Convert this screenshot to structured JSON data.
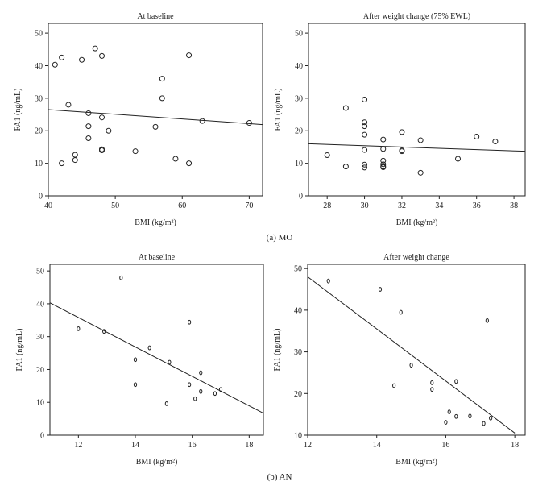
{
  "chart_data": [
    {
      "type": "scatter",
      "title": "At baseline",
      "xlabel": "BMI (kg/m²)",
      "ylabel": "FA1 (ng/mL)",
      "xlim": [
        40,
        72
      ],
      "ylim": [
        0,
        53
      ],
      "xticks": [
        40,
        50,
        60,
        70
      ],
      "yticks": [
        0,
        10,
        20,
        30,
        40,
        50
      ],
      "points": [
        {
          "x": 41,
          "y": 40.3
        },
        {
          "x": 42,
          "y": 42.5
        },
        {
          "x": 42,
          "y": 10
        },
        {
          "x": 43,
          "y": 28
        },
        {
          "x": 44,
          "y": 12.6
        },
        {
          "x": 44,
          "y": 11
        },
        {
          "x": 45,
          "y": 41.8
        },
        {
          "x": 46,
          "y": 25.4
        },
        {
          "x": 46,
          "y": 21.4
        },
        {
          "x": 46,
          "y": 17.7
        },
        {
          "x": 47,
          "y": 45.3
        },
        {
          "x": 48,
          "y": 43
        },
        {
          "x": 48,
          "y": 24.1
        },
        {
          "x": 48,
          "y": 14.3
        },
        {
          "x": 48,
          "y": 14
        },
        {
          "x": 49,
          "y": 20
        },
        {
          "x": 53,
          "y": 13.7
        },
        {
          "x": 56,
          "y": 21.2
        },
        {
          "x": 57,
          "y": 36
        },
        {
          "x": 57,
          "y": 30
        },
        {
          "x": 59,
          "y": 11.4
        },
        {
          "x": 61,
          "y": 43.2
        },
        {
          "x": 61,
          "y": 10
        },
        {
          "x": 63,
          "y": 23
        },
        {
          "x": 70,
          "y": 22.4
        }
      ],
      "fit_line": {
        "x": [
          40,
          72
        ],
        "y": [
          26.5,
          21.9
        ]
      }
    },
    {
      "type": "scatter",
      "title": "After weight change (75% EWL)",
      "xlabel": "BMI (kg/m²)",
      "ylabel": "FA1 (ng/mL)",
      "xlim": [
        27,
        38.6
      ],
      "ylim": [
        0,
        53
      ],
      "xticks": [
        28,
        30,
        32,
        34,
        36,
        38
      ],
      "yticks": [
        0,
        10,
        20,
        30,
        40,
        50
      ],
      "points": [
        {
          "x": 28,
          "y": 12.5
        },
        {
          "x": 29,
          "y": 27
        },
        {
          "x": 29,
          "y": 9
        },
        {
          "x": 30,
          "y": 29.6
        },
        {
          "x": 30,
          "y": 22.6
        },
        {
          "x": 30,
          "y": 21.4
        },
        {
          "x": 30,
          "y": 18.8
        },
        {
          "x": 30,
          "y": 14.1
        },
        {
          "x": 30,
          "y": 9.6
        },
        {
          "x": 30,
          "y": 8.7
        },
        {
          "x": 31,
          "y": 17.3
        },
        {
          "x": 31,
          "y": 14.4
        },
        {
          "x": 31,
          "y": 10.8
        },
        {
          "x": 31,
          "y": 9.7
        },
        {
          "x": 31,
          "y": 9
        },
        {
          "x": 31,
          "y": 8.8
        },
        {
          "x": 32,
          "y": 19.6
        },
        {
          "x": 32,
          "y": 14
        },
        {
          "x": 32,
          "y": 13.7
        },
        {
          "x": 33,
          "y": 17.1
        },
        {
          "x": 33,
          "y": 7.1
        },
        {
          "x": 35,
          "y": 11.4
        },
        {
          "x": 36,
          "y": 18.2
        },
        {
          "x": 37,
          "y": 16.7
        }
      ],
      "fit_line": {
        "x": [
          27,
          38.6
        ],
        "y": [
          16.0,
          13.7
        ]
      }
    },
    {
      "type": "scatter",
      "title": "At baseline",
      "xlabel": "BMI (kg/m²)",
      "ylabel": "FA1 (ng/mL)",
      "xlim": [
        11,
        18.5
      ],
      "ylim": [
        0,
        52
      ],
      "xticks": [
        12,
        14,
        16,
        18
      ],
      "yticks": [
        0,
        10,
        20,
        30,
        40,
        50
      ],
      "marker": "0",
      "points": [
        {
          "x": 12,
          "y": 32.4
        },
        {
          "x": 12.9,
          "y": 31.6
        },
        {
          "x": 13.5,
          "y": 47.9
        },
        {
          "x": 14,
          "y": 23
        },
        {
          "x": 14,
          "y": 15.4
        },
        {
          "x": 14.5,
          "y": 26.6
        },
        {
          "x": 15.1,
          "y": 9.6
        },
        {
          "x": 15.2,
          "y": 22.2
        },
        {
          "x": 15.9,
          "y": 34.4
        },
        {
          "x": 15.9,
          "y": 15.4
        },
        {
          "x": 16.1,
          "y": 11.1
        },
        {
          "x": 16.3,
          "y": 19
        },
        {
          "x": 16.3,
          "y": 13.3
        },
        {
          "x": 16.8,
          "y": 12.7
        },
        {
          "x": 17,
          "y": 13.9
        }
      ],
      "fit_line": {
        "x": [
          11,
          18.5
        ],
        "y": [
          40.3,
          6.7
        ]
      }
    },
    {
      "type": "scatter",
      "title": "After weight change",
      "xlabel": "BMI (kg/m²)",
      "ylabel": "FA1 (ng/mL)",
      "xlim": [
        12,
        18.3
      ],
      "ylim": [
        10,
        51
      ],
      "xticks": [
        12,
        14,
        16,
        18
      ],
      "yticks": [
        10,
        20,
        30,
        40,
        50
      ],
      "marker": "0",
      "points": [
        {
          "x": 12.6,
          "y": 47
        },
        {
          "x": 14.1,
          "y": 45
        },
        {
          "x": 14.5,
          "y": 21.9
        },
        {
          "x": 14.7,
          "y": 39.5
        },
        {
          "x": 15,
          "y": 26.8
        },
        {
          "x": 15.6,
          "y": 22.6
        },
        {
          "x": 15.6,
          "y": 21
        },
        {
          "x": 16,
          "y": 13.1
        },
        {
          "x": 16.1,
          "y": 15.6
        },
        {
          "x": 16.3,
          "y": 22.9
        },
        {
          "x": 16.3,
          "y": 14.5
        },
        {
          "x": 16.7,
          "y": 14.6
        },
        {
          "x": 17.1,
          "y": 12.8
        },
        {
          "x": 17.2,
          "y": 37.5
        },
        {
          "x": 17.3,
          "y": 14.1
        }
      ],
      "fit_line": {
        "x": [
          12,
          18
        ],
        "y": [
          48,
          10.5
        ]
      }
    }
  ],
  "captions": [
    "(a)  MO",
    "(b)  AN"
  ]
}
